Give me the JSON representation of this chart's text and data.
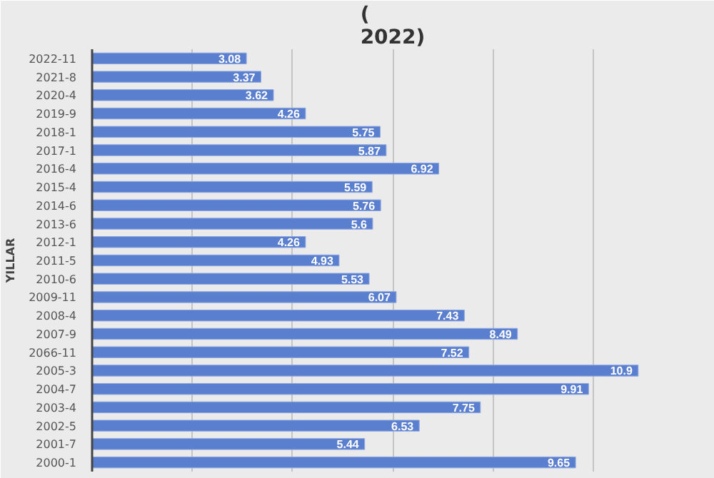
{
  "chart_data": {
    "type": "bar",
    "orientation": "horizontal",
    "title": "(\n2022)",
    "ylabel": "YILLAR",
    "categories": [
      "2022-11",
      "2021-8",
      "2020-4",
      "2019-9",
      "2018-1",
      "2017-1",
      "2016-4",
      "2015-4",
      "2014-6",
      "2013-6",
      "2012-1",
      "2011-5",
      "2010-6",
      "2009-11",
      "2008-4",
      "2007-9",
      "2066-11",
      "2005-3",
      "2004-7",
      "2003-4",
      "2002-5",
      "2001-7",
      "2000-1"
    ],
    "values": [
      3.08,
      3.37,
      3.62,
      4.26,
      5.75,
      5.87,
      6.92,
      5.59,
      5.76,
      5.6,
      4.26,
      4.93,
      5.53,
      6.07,
      7.43,
      8.49,
      7.52,
      10.9,
      9.91,
      7.75,
      6.53,
      5.44,
      9.65
    ],
    "color": "#5b7fcf",
    "data_labels": true,
    "xlim": [
      0,
      12
    ],
    "xticks": [
      {
        "value": 0,
        "label": null
      },
      {
        "value": 2,
        "label": null
      },
      {
        "value": 4,
        "label": null
      },
      {
        "value": 6,
        "label": null
      },
      {
        "value": 8,
        "label": null
      },
      {
        "value": 10,
        "label": null
      },
      {
        "value": 12,
        "label": null
      }
    ],
    "grid": "x",
    "tick_labels": "y"
  }
}
